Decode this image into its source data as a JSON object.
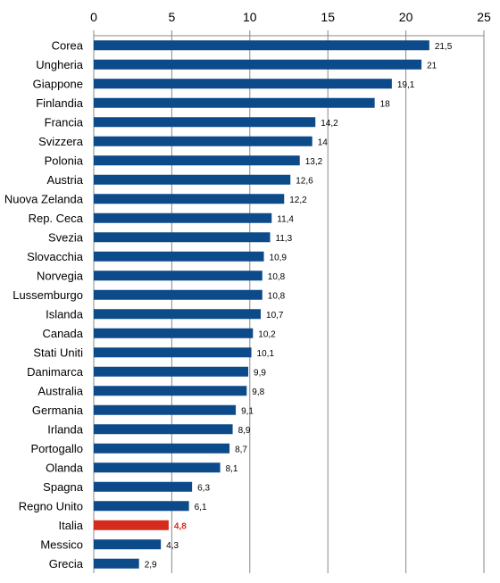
{
  "chart_data": {
    "type": "bar",
    "orientation": "horizontal",
    "title": "",
    "xlabel": "",
    "ylabel": "",
    "xlim": [
      0,
      25
    ],
    "x_ticks": [
      "0",
      "5",
      "10",
      "15",
      "20",
      "25"
    ],
    "x_axis_position": "top",
    "grid": "vertical",
    "legend": "none",
    "categories": [
      "Corea",
      "Ungheria",
      "Giappone",
      "Finlandia",
      "Francia",
      "Svizzera",
      "Polonia",
      "Austria",
      "Nuova Zelanda",
      "Rep. Ceca",
      "Svezia",
      "Slovacchia",
      "Norvegia",
      "Lussemburgo",
      "Islanda",
      "Canada",
      "Stati Uniti",
      "Danimarca",
      "Australia",
      "Germania",
      "Irlanda",
      "Portogallo",
      "Olanda",
      "Spagna",
      "Regno Unito",
      "Italia",
      "Messico",
      "Grecia"
    ],
    "values": [
      21.5,
      21,
      19.1,
      18,
      14.2,
      14,
      13.2,
      12.6,
      12.2,
      11.4,
      11.3,
      10.9,
      10.8,
      10.8,
      10.7,
      10.2,
      10.1,
      9.9,
      9.8,
      9.1,
      8.9,
      8.7,
      8.1,
      6.3,
      6.1,
      4.8,
      4.3,
      2.9
    ],
    "value_labels": [
      "21,5",
      "21",
      "19,1",
      "18",
      "14,2",
      "14",
      "13,2",
      "12,6",
      "12,2",
      "11,4",
      "11,3",
      "10,9",
      "10,8",
      "10,8",
      "10,7",
      "10,2",
      "10,1",
      "9,9",
      "9,8",
      "9,1",
      "8,9",
      "8,7",
      "8,1",
      "6,3",
      "6,1",
      "4,8",
      "4,3",
      "2,9"
    ],
    "highlight_category": "Italia",
    "colors": {
      "bar": "#0d4a8a",
      "highlight": "#d52b1e",
      "grid": "#888888",
      "axis": "#888888"
    }
  }
}
